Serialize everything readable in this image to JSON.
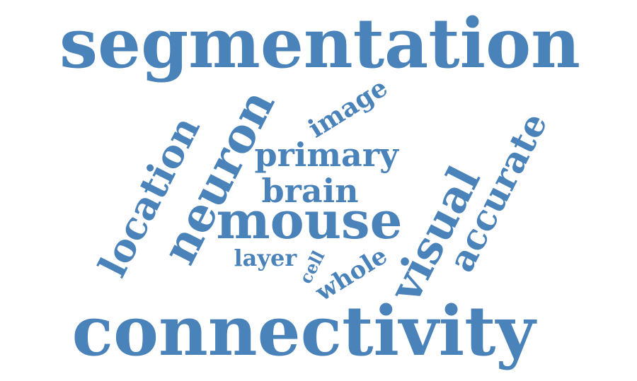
{
  "color": "#4a82ba",
  "words": [
    {
      "key": "segmentation",
      "text": "segmentation",
      "orientation": "horizontal"
    },
    {
      "key": "connectivity",
      "text": "connectivity",
      "orientation": "horizontal"
    },
    {
      "key": "mouse",
      "text": "mouse",
      "orientation": "horizontal"
    },
    {
      "key": "neuron",
      "text": "neuron",
      "orientation": "diagonal"
    },
    {
      "key": "location",
      "text": "location",
      "orientation": "diagonal"
    },
    {
      "key": "visual",
      "text": "visual",
      "orientation": "diagonal"
    },
    {
      "key": "accurate",
      "text": "accurate",
      "orientation": "diagonal"
    },
    {
      "key": "primary",
      "text": "primary",
      "orientation": "horizontal"
    },
    {
      "key": "brain",
      "text": "brain",
      "orientation": "horizontal"
    },
    {
      "key": "image",
      "text": "image",
      "orientation": "diagonal"
    },
    {
      "key": "whole",
      "text": "whole",
      "orientation": "diagonal"
    },
    {
      "key": "layer",
      "text": "layer",
      "orientation": "horizontal"
    },
    {
      "key": "cell",
      "text": "cell",
      "orientation": "diagonal"
    }
  ]
}
